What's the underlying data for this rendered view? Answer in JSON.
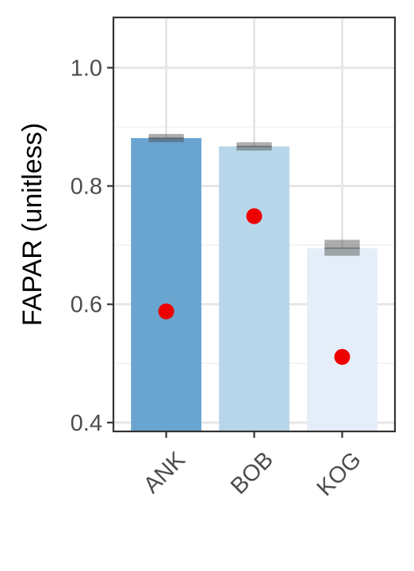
{
  "chart_data": {
    "type": "bar",
    "ylabel": "FAPAR (unitless)",
    "xlabel": "",
    "ylim": [
      0.385,
      1.085
    ],
    "yticks": [
      0.4,
      0.6,
      0.8,
      1.0
    ],
    "ytick_labels": [
      "0.4",
      "0.6",
      "0.8",
      "1.0"
    ],
    "categories": [
      "ANK",
      "BOB",
      "KOG"
    ],
    "bar_values": [
      0.881,
      0.867,
      0.695
    ],
    "bar_error": [
      {
        "low": 0.874,
        "high": 0.888
      },
      {
        "low": 0.86,
        "high": 0.874
      },
      {
        "low": 0.682,
        "high": 0.709
      }
    ],
    "point_values": [
      0.588,
      0.749,
      0.511
    ],
    "bar_colors": [
      "#6aa5d0",
      "#b7d6ea",
      "#e5eef8"
    ],
    "point_color": "#ee0000",
    "grid": true,
    "legend": "none"
  }
}
